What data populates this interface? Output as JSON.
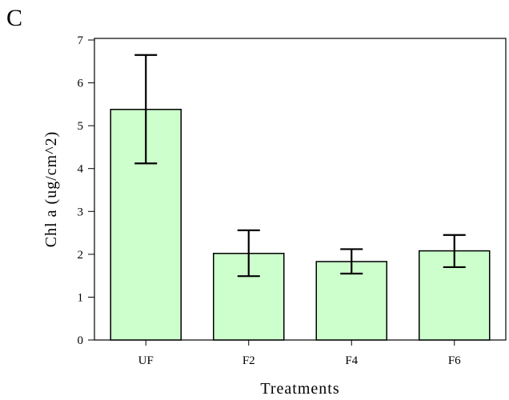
{
  "panel_label": "C",
  "chart_data": {
    "type": "bar",
    "title": "",
    "xlabel": "Treatments",
    "ylabel": "Chl a (ug/cm^2)",
    "categories": [
      "UF",
      "F2",
      "F4",
      "F6"
    ],
    "values": [
      5.38,
      2.02,
      1.83,
      2.08
    ],
    "error_low": [
      4.12,
      1.49,
      1.55,
      1.7
    ],
    "error_high": [
      6.65,
      2.56,
      2.12,
      2.45
    ],
    "ylim": [
      0,
      7
    ],
    "yticks": [
      0,
      1,
      2,
      3,
      4,
      5,
      6,
      7
    ],
    "grid": false,
    "colors": {
      "bar_fill": "#ccffcc",
      "bar_stroke": "#000000",
      "axis": "#000000"
    }
  }
}
